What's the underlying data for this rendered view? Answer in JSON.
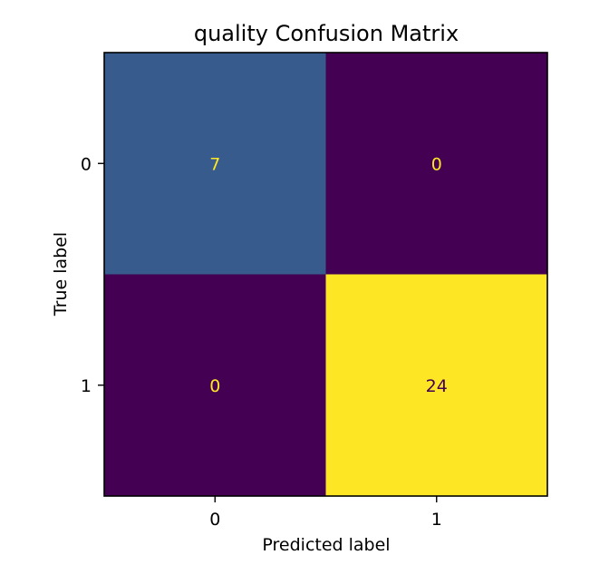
{
  "chart_data": {
    "type": "heatmap",
    "title": "quality Confusion Matrix",
    "xlabel": "Predicted label",
    "ylabel": "True label",
    "x_categories": [
      "0",
      "1"
    ],
    "y_categories": [
      "0",
      "1"
    ],
    "matrix": [
      [
        7,
        0
      ],
      [
        0,
        24
      ]
    ],
    "colormap": "viridis",
    "value_range": [
      0,
      24
    ],
    "colorbar": false,
    "grid": false
  },
  "colors": {
    "low": "#440154",
    "high": "#fde725",
    "text_on_dark": "#fde725",
    "text_on_light": "#440154"
  }
}
